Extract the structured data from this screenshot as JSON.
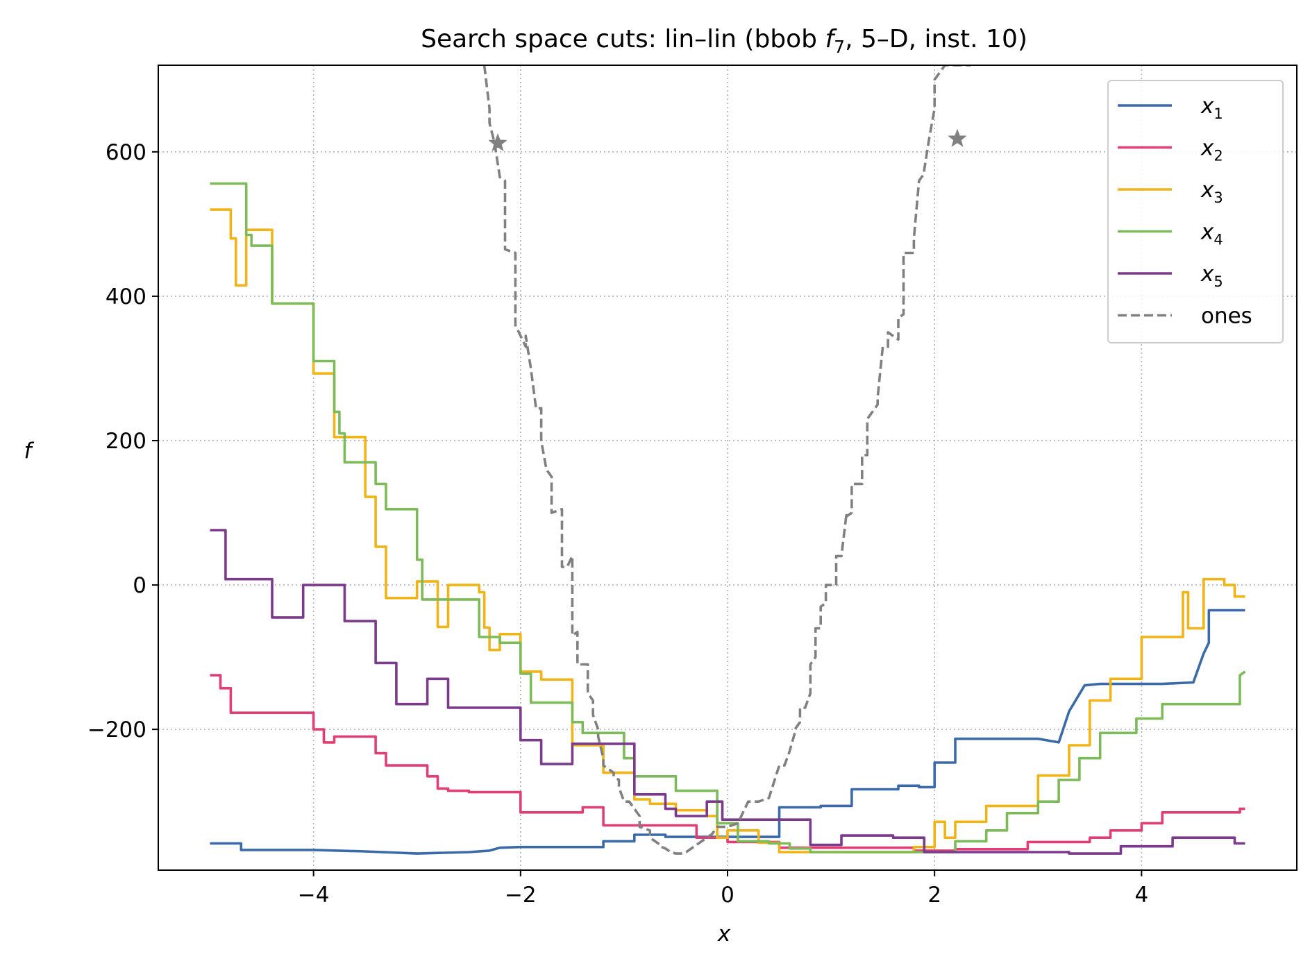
{
  "chart_data": {
    "type": "line",
    "title": "Search space cuts: lin–lin (bbob f7, 5–D, inst. 10)",
    "title_parts": [
      "Search space cuts: lin–lin (bbob ",
      "f",
      "7",
      ", 5–D, inst. 10)"
    ],
    "xlabel": "x",
    "ylabel": "f",
    "xlim": [
      -5.5,
      5.5
    ],
    "ylim": [
      -395,
      720
    ],
    "xticks": [
      -4,
      -2,
      0,
      2,
      4
    ],
    "yticks": [
      -200,
      0,
      200,
      400,
      600
    ],
    "xtick_labels": [
      "−4",
      "−2",
      "0",
      "2",
      "4"
    ],
    "ytick_labels": [
      "−200",
      "0",
      "200",
      "400",
      "600"
    ],
    "grid": true,
    "grid_style": "dotted",
    "legend_position": "top-right",
    "series": [
      {
        "name": "x1",
        "label_base": "x",
        "label_sub": "1",
        "color": "#3b6aa8",
        "dash": "solid",
        "x": [
          -5.0,
          -4.7,
          -4.7,
          -4.0,
          -3.5,
          -3.0,
          -2.5,
          -2.3,
          -2.2,
          -2.0,
          -1.2,
          -1.2,
          -0.9,
          -0.9,
          -0.6,
          -0.6,
          0.5,
          0.5,
          0.9,
          0.9,
          1.2,
          1.2,
          1.65,
          1.65,
          1.85,
          1.85,
          2.0,
          2.0,
          2.2,
          2.2,
          3.0,
          3.2,
          3.2,
          3.3,
          3.3,
          3.45,
          3.45,
          3.6,
          3.6,
          4.2,
          4.2,
          4.5,
          4.5,
          4.6,
          4.65,
          4.65,
          5.0
        ],
        "y": [
          -358,
          -358,
          -367,
          -367,
          -369,
          -372,
          -370,
          -368,
          -364,
          -363,
          -363,
          -355,
          -355,
          -346,
          -346,
          -349,
          -349,
          -308,
          -308,
          -306,
          -306,
          -283,
          -283,
          -278,
          -278,
          -280,
          -280,
          -246,
          -246,
          -213,
          -213,
          -218,
          -218,
          -175,
          -175,
          -139,
          -139,
          -137,
          -137,
          -137,
          -137,
          -135,
          -135,
          -95,
          -80,
          -35,
          -35
        ]
      },
      {
        "name": "x2",
        "label_base": "x",
        "label_sub": "2",
        "color": "#e23e74",
        "dash": "solid",
        "x": [
          -5.0,
          -4.9,
          -4.9,
          -4.8,
          -4.8,
          -4.0,
          -4.0,
          -3.9,
          -3.9,
          -3.8,
          -3.8,
          -3.4,
          -3.4,
          -3.3,
          -3.3,
          -2.9,
          -2.9,
          -2.8,
          -2.8,
          -2.7,
          -2.7,
          -2.5,
          -2.5,
          -2.0,
          -2.0,
          -1.4,
          -1.4,
          -1.2,
          -1.2,
          -0.3,
          -0.3,
          0.0,
          0.0,
          0.5,
          0.5,
          1.8,
          1.8,
          2.2,
          2.2,
          2.9,
          2.9,
          3.5,
          3.5,
          3.7,
          3.7,
          4.0,
          4.0,
          4.2,
          4.2,
          4.95,
          4.95,
          5.0
        ],
        "y": [
          -125,
          -125,
          -143,
          -143,
          -177,
          -177,
          -200,
          -200,
          -218,
          -218,
          -210,
          -210,
          -233,
          -233,
          -250,
          -250,
          -265,
          -265,
          -282,
          -282,
          -285,
          -285,
          -287,
          -287,
          -315,
          -315,
          -308,
          -308,
          -333,
          -333,
          -350,
          -350,
          -356,
          -356,
          -364,
          -364,
          -368,
          -368,
          -366,
          -366,
          -356,
          -356,
          -350,
          -350,
          -340,
          -340,
          -330,
          -330,
          -315,
          -315,
          -310,
          -310
        ]
      },
      {
        "name": "x3",
        "label_base": "x",
        "label_sub": "3",
        "color": "#f0b417",
        "dash": "solid",
        "x": [
          -5.0,
          -4.8,
          -4.8,
          -4.75,
          -4.75,
          -4.65,
          -4.65,
          -4.4,
          -4.4,
          -4.0,
          -4.0,
          -3.8,
          -3.8,
          -3.5,
          -3.5,
          -3.4,
          -3.4,
          -3.3,
          -3.3,
          -3.0,
          -3.0,
          -2.8,
          -2.8,
          -2.7,
          -2.7,
          -2.4,
          -2.4,
          -2.35,
          -2.35,
          -2.3,
          -2.3,
          -2.2,
          -2.2,
          -2.0,
          -2.0,
          -1.8,
          -1.8,
          -1.5,
          -1.5,
          -1.2,
          -1.2,
          -0.9,
          -0.9,
          -0.75,
          -0.75,
          -0.5,
          -0.5,
          -0.2,
          -0.2,
          -0.1,
          -0.1,
          0.0,
          0.0,
          0.3,
          0.3,
          0.5,
          0.5,
          1.8,
          1.8,
          2.0,
          2.0,
          2.1,
          2.1,
          2.2,
          2.2,
          2.5,
          2.5,
          3.0,
          3.0,
          3.3,
          3.3,
          3.5,
          3.5,
          3.7,
          3.7,
          4.0,
          4.0,
          4.4,
          4.4,
          4.45,
          4.45,
          4.6,
          4.6,
          4.8,
          4.8,
          4.9,
          4.9,
          5.0
        ],
        "y": [
          520,
          520,
          480,
          480,
          415,
          415,
          492,
          492,
          390,
          390,
          293,
          293,
          205,
          205,
          122,
          122,
          53,
          53,
          -18,
          -18,
          5,
          5,
          -58,
          -58,
          0,
          0,
          -10,
          -10,
          -59,
          -59,
          -90,
          -90,
          -68,
          -68,
          -120,
          -120,
          -131,
          -131,
          -222,
          -222,
          -260,
          -260,
          -297,
          -297,
          -303,
          -303,
          -312,
          -312,
          -320,
          -320,
          -350,
          -350,
          -340,
          -340,
          -357,
          -357,
          -370,
          -370,
          -363,
          -363,
          -328,
          -328,
          -350,
          -350,
          -328,
          -328,
          -306,
          -306,
          -264,
          -264,
          -222,
          -222,
          -160,
          -160,
          -130,
          -130,
          -72,
          -72,
          -10,
          -10,
          -60,
          -60,
          8,
          8,
          0,
          0,
          -16,
          -16
        ]
      },
      {
        "name": "x4",
        "label_base": "x",
        "label_sub": "4",
        "color": "#7dba5a",
        "dash": "solid",
        "x": [
          -5.0,
          -4.65,
          -4.65,
          -4.6,
          -4.6,
          -4.4,
          -4.4,
          -4.2,
          -4.2,
          -4.0,
          -4.0,
          -3.8,
          -3.8,
          -3.75,
          -3.75,
          -3.7,
          -3.7,
          -3.4,
          -3.4,
          -3.3,
          -3.3,
          -3.0,
          -3.0,
          -2.95,
          -2.95,
          -2.8,
          -2.8,
          -2.4,
          -2.4,
          -2.2,
          -2.2,
          -2.0,
          -2.0,
          -1.9,
          -1.9,
          -1.5,
          -1.5,
          -1.4,
          -1.4,
          -1.0,
          -1.0,
          -0.9,
          -0.9,
          -0.5,
          -0.5,
          -0.1,
          -0.1,
          0.1,
          0.1,
          0.4,
          0.4,
          0.6,
          0.6,
          0.8,
          0.8,
          1.2,
          1.2,
          2.2,
          2.2,
          2.5,
          2.5,
          2.7,
          2.7,
          3.0,
          3.0,
          3.2,
          3.2,
          3.4,
          3.4,
          3.6,
          3.6,
          3.95,
          3.95,
          4.2,
          4.2,
          4.4,
          4.4,
          4.6,
          4.6,
          4.95,
          4.95,
          5.0
        ],
        "y": [
          556,
          556,
          485,
          485,
          470,
          470,
          390,
          390,
          390,
          390,
          310,
          310,
          240,
          240,
          210,
          210,
          170,
          170,
          140,
          140,
          105,
          105,
          35,
          35,
          -20,
          -20,
          -20,
          -20,
          -72,
          -72,
          -80,
          -80,
          -123,
          -123,
          -163,
          -163,
          -190,
          -190,
          -205,
          -205,
          -240,
          -240,
          -265,
          -265,
          -285,
          -285,
          -330,
          -330,
          -355,
          -355,
          -358,
          -358,
          -365,
          -365,
          -370,
          -370,
          -370,
          -370,
          -355,
          -355,
          -340,
          -340,
          -316,
          -316,
          -300,
          -300,
          -270,
          -270,
          -240,
          -240,
          -205,
          -205,
          -185,
          -185,
          -165,
          -165,
          -165,
          -165,
          -165,
          -165,
          -125,
          -120
        ]
      },
      {
        "name": "x5",
        "label_base": "x",
        "label_sub": "5",
        "color": "#7b3a8c",
        "dash": "solid",
        "x": [
          -5.0,
          -4.85,
          -4.85,
          -4.4,
          -4.4,
          -4.1,
          -4.1,
          -3.7,
          -3.7,
          -3.4,
          -3.4,
          -3.35,
          -3.35,
          -3.2,
          -3.2,
          -2.9,
          -2.9,
          -2.7,
          -2.7,
          -2.65,
          -2.65,
          -2.0,
          -2.0,
          -1.8,
          -1.8,
          -1.5,
          -1.5,
          -1.2,
          -1.2,
          -0.9,
          -0.9,
          -0.6,
          -0.6,
          -0.5,
          -0.5,
          -0.2,
          -0.2,
          -0.05,
          -0.05,
          0.1,
          0.1,
          0.8,
          0.8,
          1.1,
          1.1,
          1.6,
          1.6,
          1.9,
          1.9,
          3.3,
          3.3,
          3.8,
          3.8,
          4.3,
          4.3,
          4.9,
          4.9,
          5.0
        ],
        "y": [
          76,
          76,
          8,
          8,
          -45,
          -45,
          0,
          0,
          -50,
          -50,
          -108,
          -108,
          -108,
          -108,
          -165,
          -165,
          -130,
          -130,
          -170,
          -170,
          -170,
          -170,
          -215,
          -215,
          -248,
          -248,
          -220,
          -220,
          -220,
          -220,
          -290,
          -290,
          -310,
          -310,
          -320,
          -320,
          -300,
          -300,
          -325,
          -325,
          -325,
          -325,
          -360,
          -360,
          -347,
          -347,
          -350,
          -350,
          -370,
          -370,
          -372,
          -372,
          -362,
          -362,
          -350,
          -350,
          -358,
          -358
        ]
      },
      {
        "name": "ones",
        "color": "#808080",
        "dash": "dashed",
        "x": [
          -2.35,
          -2.3,
          -2.3,
          -2.25,
          -2.2,
          -2.15,
          -2.15,
          -2.05,
          -2.05,
          -1.95,
          -1.95,
          -1.9,
          -1.85,
          -1.8,
          -1.8,
          -1.75,
          -1.7,
          -1.7,
          -1.6,
          -1.6,
          -1.55,
          -1.5,
          -1.5,
          -1.45,
          -1.45,
          -1.35,
          -1.35,
          -1.3,
          -1.3,
          -1.25,
          -1.25,
          -1.2,
          -1.2,
          -1.1,
          -1.1,
          -1.05,
          -1.05,
          -1.0,
          -0.95,
          -0.9,
          -0.85,
          -0.85,
          -0.75,
          -0.75,
          -0.7,
          -0.65,
          -0.65,
          -0.6,
          -0.55,
          -0.5,
          -0.45,
          -0.4,
          -0.35,
          -0.3,
          -0.25,
          -0.2,
          -0.15,
          -0.1,
          0.0,
          0.1,
          0.2,
          0.3,
          0.4,
          0.5,
          0.55,
          0.6,
          0.65,
          0.65,
          0.7,
          0.7,
          0.75,
          0.8,
          0.8,
          0.85,
          0.85,
          0.9,
          0.9,
          0.95,
          0.95,
          1.05,
          1.05,
          1.1,
          1.15,
          1.15,
          1.2,
          1.2,
          1.3,
          1.3,
          1.35,
          1.35,
          1.45,
          1.45,
          1.5,
          1.55,
          1.55,
          1.65,
          1.65,
          1.7,
          1.7,
          1.75,
          1.8,
          1.8,
          1.85,
          1.85,
          1.9,
          1.9,
          1.95,
          2.0,
          2.0,
          2.1,
          2.1,
          2.15,
          2.15,
          2.2,
          2.25,
          2.25,
          2.3,
          2.35
        ],
        "y": [
          720,
          660,
          640,
          612,
          565,
          560,
          465,
          460,
          360,
          330,
          345,
          300,
          244,
          245,
          200,
          160,
          150,
          100,
          105,
          25,
          25,
          40,
          -70,
          -65,
          -110,
          -110,
          -150,
          -160,
          -180,
          -200,
          -210,
          -240,
          -250,
          -260,
          -265,
          -270,
          -280,
          -300,
          -300,
          -310,
          -320,
          -335,
          -340,
          -350,
          -355,
          -360,
          -362,
          -365,
          -370,
          -372,
          -372,
          -370,
          -365,
          -360,
          -355,
          -350,
          -345,
          -335,
          -335,
          -330,
          -300,
          -300,
          -295,
          -250,
          -250,
          -230,
          -205,
          -200,
          -190,
          -170,
          -170,
          -150,
          -110,
          -100,
          -60,
          -60,
          -30,
          -25,
          0,
          0,
          40,
          40,
          100,
          95,
          100,
          140,
          140,
          180,
          180,
          230,
          250,
          260,
          330,
          330,
          350,
          340,
          370,
          375,
          460,
          460,
          460,
          480,
          560,
          560,
          570,
          575,
          620,
          660,
          700,
          720,
          720,
          720,
          720,
          720,
          720,
          720,
          720,
          720
        ]
      }
    ],
    "markers": [
      {
        "series": "ones",
        "symbol": "star",
        "x": -2.22,
        "y": 612
      },
      {
        "series": "ones",
        "symbol": "star",
        "x": 2.22,
        "y": 618
      }
    ]
  }
}
